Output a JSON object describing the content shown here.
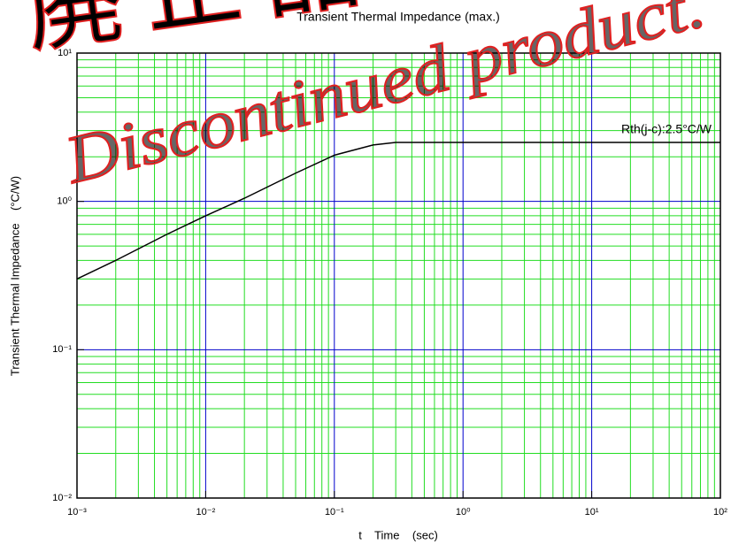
{
  "chart_data": {
    "type": "line",
    "title": "Transient Thermal Impedance (max.)",
    "x_label": "t    Time    (sec)",
    "y_label": "Transient Thermal Impedance    (°C/W)",
    "annotation": "Rth(j-c):2.5°C/W",
    "watermark": "Discontinued product.",
    "watermark_jp": "廃止品",
    "log_x": true,
    "log_y": true,
    "grid": true,
    "minor_grid": true,
    "major_grid_color": "#0000cc",
    "minor_grid_color": "#22dd22",
    "x": [
      0.001,
      0.002,
      0.005,
      0.01,
      0.02,
      0.05,
      0.1,
      0.2,
      0.3,
      1,
      10,
      100
    ],
    "series": [
      {
        "name": "Rth(j-c)",
        "color": "#000000",
        "values": [
          0.3,
          0.4,
          0.6,
          0.8,
          1.05,
          1.55,
          2.05,
          2.4,
          2.5,
          2.5,
          2.5,
          2.5
        ]
      }
    ],
    "xlim": [
      0.001,
      100
    ],
    "xticks": [
      {
        "value": 0.001,
        "label": "10⁻³"
      },
      {
        "value": 0.01,
        "label": "10⁻²"
      },
      {
        "value": 0.1,
        "label": "10⁻¹"
      },
      {
        "value": 1,
        "label": "10⁰"
      },
      {
        "value": 10,
        "label": "10¹"
      },
      {
        "value": 100,
        "label": "10²"
      }
    ],
    "ylim": [
      0.01,
      10
    ],
    "yticks": [
      {
        "value": 0.01,
        "label": "10⁻²"
      },
      {
        "value": 0.1,
        "label": "10⁻¹"
      },
      {
        "value": 1,
        "label": "10⁰"
      },
      {
        "value": 10,
        "label": "10¹"
      }
    ]
  }
}
